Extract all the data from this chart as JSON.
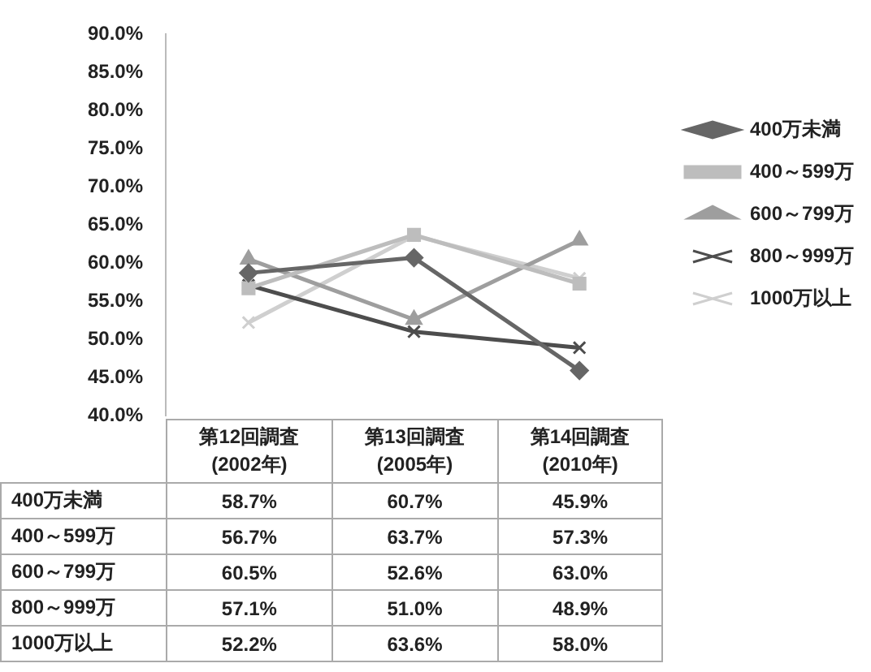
{
  "chart_data": {
    "type": "line",
    "categories": [
      "第12回調査\n(2002年)",
      "第13回調査\n(2005年)",
      "第14回調査\n(2010年)"
    ],
    "series": [
      {
        "name": "400万未満",
        "color": "#666666",
        "marker": "diamond",
        "values": [
          58.7,
          60.7,
          45.9
        ],
        "value_labels": [
          "58.7%",
          "60.7%",
          "45.9%"
        ]
      },
      {
        "name": "400～599万",
        "color": "#bdbdbd",
        "marker": "square",
        "values": [
          56.7,
          63.7,
          57.3
        ],
        "value_labels": [
          "56.7%",
          "63.7%",
          "57.3%"
        ]
      },
      {
        "name": "600～799万",
        "color": "#9e9e9e",
        "marker": "triangle",
        "values": [
          60.5,
          52.6,
          63.0
        ],
        "value_labels": [
          "60.5%",
          "52.6%",
          "63.0%"
        ]
      },
      {
        "name": "800～999万",
        "color": "#4d4d4d",
        "marker": "cross",
        "values": [
          57.1,
          51.0,
          48.9
        ],
        "value_labels": [
          "57.1%",
          "51.0%",
          "48.9%"
        ]
      },
      {
        "name": "1000万以上",
        "color": "#cfcfcf",
        "marker": "cross",
        "values": [
          52.2,
          63.6,
          58.0
        ],
        "value_labels": [
          "52.2%",
          "63.6%",
          "58.0%"
        ]
      }
    ],
    "ylim": [
      40,
      90
    ],
    "yticks": [
      {
        "value": 40,
        "label": "40.0%"
      },
      {
        "value": 45,
        "label": "45.0%"
      },
      {
        "value": 50,
        "label": "50.0%"
      },
      {
        "value": 55,
        "label": "55.0%"
      },
      {
        "value": 60,
        "label": "60.0%"
      },
      {
        "value": 65,
        "label": "65.0%"
      },
      {
        "value": 70,
        "label": "70.0%"
      },
      {
        "value": 75,
        "label": "75.0%"
      },
      {
        "value": 80,
        "label": "80.0%"
      },
      {
        "value": 85,
        "label": "85.0%"
      },
      {
        "value": 90,
        "label": "90.0%"
      }
    ],
    "grid": false,
    "legend": "right",
    "line_style": "solid"
  }
}
